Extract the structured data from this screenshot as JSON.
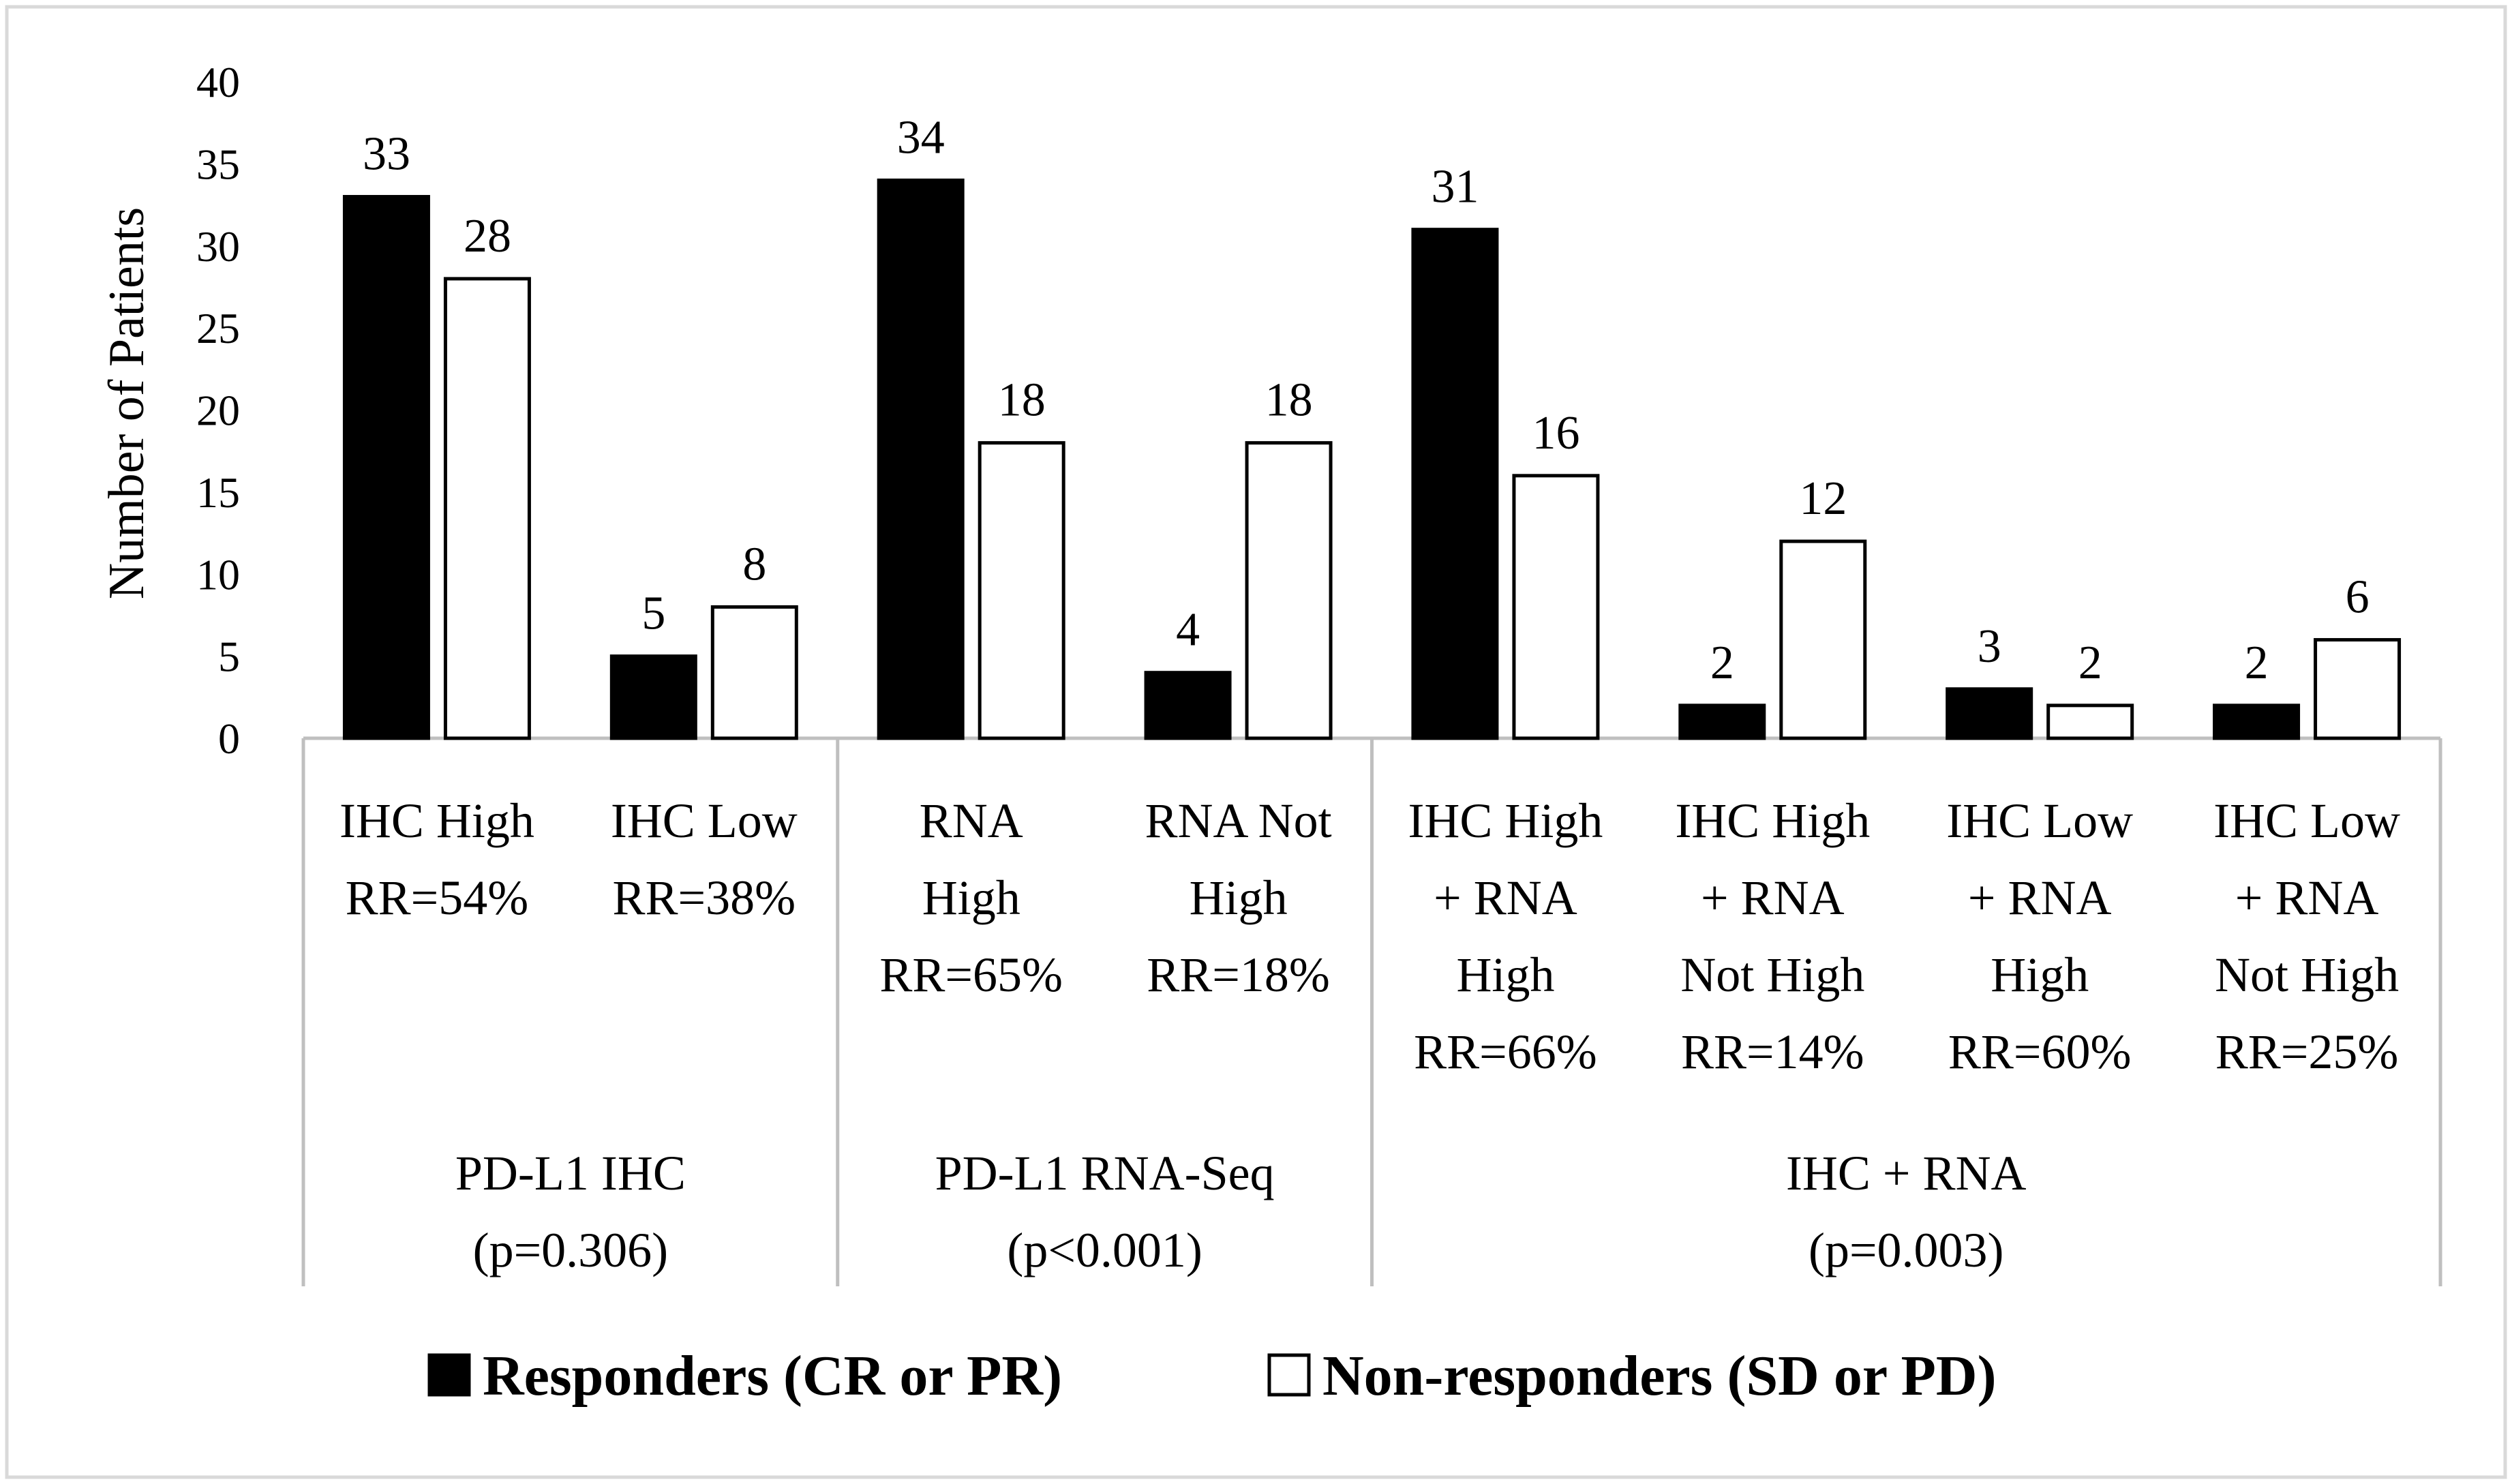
{
  "chart_data": {
    "type": "bar",
    "title": "",
    "xlabel": "",
    "ylabel": "Number of Patients",
    "ylim": [
      0,
      40
    ],
    "yticks": [
      "0",
      "5",
      "10",
      "15",
      "20",
      "25",
      "30",
      "35",
      "40"
    ],
    "grid": false,
    "legend_position": "bottom",
    "categories": [
      {
        "lines": [
          "IHC High",
          "RR=54%"
        ]
      },
      {
        "lines": [
          "IHC Low",
          "RR=38%"
        ]
      },
      {
        "lines": [
          "RNA",
          "High",
          "RR=65%"
        ]
      },
      {
        "lines": [
          "RNA Not",
          "High",
          "RR=18%"
        ]
      },
      {
        "lines": [
          "IHC High",
          "+ RNA",
          "High",
          "RR=66%"
        ]
      },
      {
        "lines": [
          "IHC High",
          "+ RNA",
          "Not High",
          "RR=14%"
        ]
      },
      {
        "lines": [
          "IHC Low",
          "+ RNA",
          "High",
          "RR=60%"
        ]
      },
      {
        "lines": [
          "IHC Low",
          "+ RNA",
          "Not High",
          "RR=25%"
        ]
      }
    ],
    "groups": [
      {
        "name": "PD-L1 IHC",
        "p": "(p=0.306)",
        "categories": [
          0,
          1
        ]
      },
      {
        "name": "PD-L1 RNA-Seq",
        "p": "(p<0.001)",
        "categories": [
          2,
          3
        ]
      },
      {
        "name": "IHC + RNA",
        "p": "(p=0.003)",
        "categories": [
          4,
          5,
          6,
          7
        ]
      }
    ],
    "series": [
      {
        "name": "Responders (CR or PR)",
        "fill": "#000000",
        "values": [
          33,
          5,
          34,
          4,
          31,
          2,
          3,
          2
        ]
      },
      {
        "name": "Non-responders (SD or PD)",
        "fill": "#ffffff",
        "values": [
          28,
          8,
          18,
          18,
          16,
          12,
          2,
          6
        ]
      }
    ]
  },
  "colors": {
    "axis": "#bfbfbf",
    "bar_edge": "#000000",
    "frame": "#d9d9d9"
  }
}
